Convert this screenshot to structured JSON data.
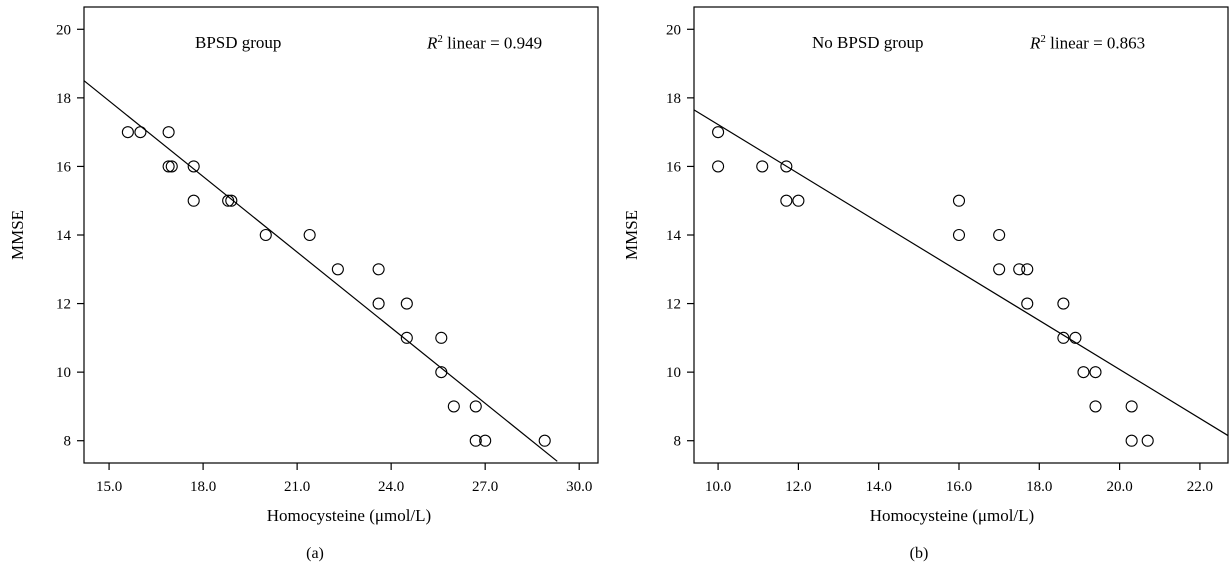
{
  "chart_data": [
    {
      "type": "scatter",
      "panel_label": "(a)",
      "group_label": "BPSD group",
      "r2_text": "R",
      "r2_sup": "2",
      "r2_rest": " linear = 0.949",
      "xlabel": "Homocysteine (μmol/L)",
      "ylabel": "MMSE",
      "xlim": [
        14.2,
        30.6
      ],
      "ylim": [
        7.35,
        20.65
      ],
      "xticks": [
        15.0,
        18.0,
        21.0,
        24.0,
        27.0,
        30.0
      ],
      "xtick_labels": [
        "15.0",
        "18.0",
        "21.0",
        "24.0",
        "27.0",
        "30.0"
      ],
      "yticks": [
        8,
        10,
        12,
        14,
        16,
        18,
        20
      ],
      "ytick_labels": [
        "8",
        "10",
        "12",
        "14",
        "16",
        "18",
        "20"
      ],
      "points": [
        [
          15.6,
          17
        ],
        [
          16.0,
          17
        ],
        [
          16.9,
          17
        ],
        [
          16.9,
          16
        ],
        [
          17.0,
          16
        ],
        [
          17.7,
          16
        ],
        [
          17.7,
          15
        ],
        [
          18.8,
          15
        ],
        [
          18.9,
          15
        ],
        [
          20.0,
          14
        ],
        [
          21.4,
          14
        ],
        [
          22.3,
          13
        ],
        [
          23.6,
          13
        ],
        [
          23.6,
          12
        ],
        [
          24.5,
          12
        ],
        [
          24.5,
          11
        ],
        [
          25.6,
          11
        ],
        [
          25.6,
          10
        ],
        [
          26.0,
          9
        ],
        [
          26.7,
          9
        ],
        [
          26.7,
          8
        ],
        [
          27.0,
          8
        ],
        [
          28.9,
          8
        ]
      ],
      "fit_line": {
        "x": [
          14.2,
          29.3
        ],
        "y": [
          18.5,
          7.4
        ]
      }
    },
    {
      "type": "scatter",
      "panel_label": "(b)",
      "group_label": "No BPSD group",
      "r2_text": "R",
      "r2_sup": "2",
      "r2_rest": " linear = 0.863",
      "xlabel": "Homocysteine (μmol/L)",
      "ylabel": "MMSE",
      "xlim": [
        9.4,
        22.7
      ],
      "ylim": [
        7.35,
        20.65
      ],
      "xticks": [
        10.0,
        12.0,
        14.0,
        16.0,
        18.0,
        20.0,
        22.0
      ],
      "xtick_labels": [
        "10.0",
        "12.0",
        "14.0",
        "16.0",
        "18.0",
        "20.0",
        "22.0"
      ],
      "yticks": [
        8,
        10,
        12,
        14,
        16,
        18,
        20
      ],
      "ytick_labels": [
        "8",
        "10",
        "12",
        "14",
        "16",
        "18",
        "20"
      ],
      "points": [
        [
          10.0,
          17
        ],
        [
          10.0,
          16
        ],
        [
          11.1,
          16
        ],
        [
          11.7,
          16
        ],
        [
          11.7,
          15
        ],
        [
          12.0,
          15
        ],
        [
          16.0,
          15
        ],
        [
          16.0,
          14
        ],
        [
          17.0,
          14
        ],
        [
          17.0,
          13
        ],
        [
          17.5,
          13
        ],
        [
          17.7,
          13
        ],
        [
          17.7,
          12
        ],
        [
          18.6,
          12
        ],
        [
          18.6,
          11
        ],
        [
          18.9,
          11
        ],
        [
          19.1,
          10
        ],
        [
          19.4,
          10
        ],
        [
          19.4,
          9
        ],
        [
          20.3,
          9
        ],
        [
          20.3,
          8
        ],
        [
          20.7,
          8
        ]
      ],
      "fit_line": {
        "x": [
          9.4,
          22.7
        ],
        "y": [
          17.65,
          8.15
        ]
      }
    }
  ]
}
